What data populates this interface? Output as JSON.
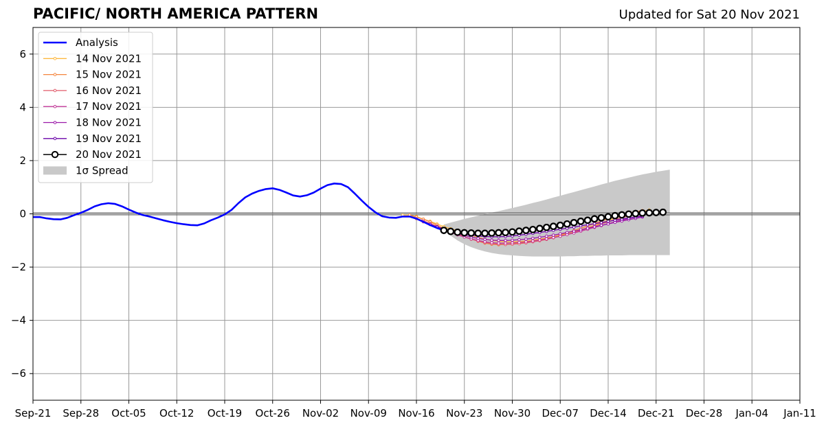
{
  "title": "PACIFIC/ NORTH AMERICA PATTERN",
  "updated": "Updated for Sat 20 Nov 2021",
  "chart_data": {
    "type": "line",
    "title": "PACIFIC/ NORTH AMERICA PATTERN",
    "subtitle": "Updated for Sat 20 Nov 2021",
    "xlabel": "",
    "ylabel": "",
    "x_start": "2021-09-21",
    "xlim": [
      "2021-09-21",
      "2022-01-11"
    ],
    "ylim": [
      -7,
      7
    ],
    "x_ticks": [
      "Sep-21",
      "Sep-28",
      "Oct-05",
      "Oct-12",
      "Oct-19",
      "Oct-26",
      "Nov-02",
      "Nov-09",
      "Nov-16",
      "Nov-23",
      "Nov-30",
      "Dec-07",
      "Dec-14",
      "Dec-21",
      "Dec-28",
      "Jan-04",
      "Jan-11"
    ],
    "y_ticks": [
      -6,
      -4,
      -2,
      0,
      2,
      4,
      6
    ],
    "grid": true,
    "legend_position": "top-left",
    "zero_line": 0,
    "analysis": {
      "name": "Analysis",
      "color": "#0000ff",
      "dates": [
        "2021-09-21",
        "2021-09-22",
        "2021-09-23",
        "2021-09-24",
        "2021-09-25",
        "2021-09-26",
        "2021-09-27",
        "2021-09-28",
        "2021-09-29",
        "2021-09-30",
        "2021-10-01",
        "2021-10-02",
        "2021-10-03",
        "2021-10-04",
        "2021-10-05",
        "2021-10-06",
        "2021-10-07",
        "2021-10-08",
        "2021-10-09",
        "2021-10-10",
        "2021-10-11",
        "2021-10-12",
        "2021-10-13",
        "2021-10-14",
        "2021-10-15",
        "2021-10-16",
        "2021-10-17",
        "2021-10-18",
        "2021-10-19",
        "2021-10-20",
        "2021-10-21",
        "2021-10-22",
        "2021-10-23",
        "2021-10-24",
        "2021-10-25",
        "2021-10-26",
        "2021-10-27",
        "2021-10-28",
        "2021-10-29",
        "2021-10-30",
        "2021-10-31",
        "2021-11-01",
        "2021-11-02",
        "2021-11-03",
        "2021-11-04",
        "2021-11-05",
        "2021-11-06",
        "2021-11-07",
        "2021-11-08",
        "2021-11-09",
        "2021-11-10",
        "2021-11-11",
        "2021-11-12",
        "2021-11-13",
        "2021-11-14",
        "2021-11-15",
        "2021-11-16",
        "2021-11-17",
        "2021-11-18",
        "2021-11-19",
        "2021-11-20"
      ],
      "values": [
        -0.12,
        -0.12,
        -0.17,
        -0.2,
        -0.21,
        -0.15,
        -0.05,
        0.04,
        0.15,
        0.28,
        0.36,
        0.4,
        0.37,
        0.28,
        0.16,
        0.05,
        -0.04,
        -0.1,
        -0.17,
        -0.24,
        -0.3,
        -0.35,
        -0.39,
        -0.42,
        -0.43,
        -0.36,
        -0.24,
        -0.14,
        -0.02,
        0.15,
        0.4,
        0.62,
        0.76,
        0.86,
        0.93,
        0.96,
        0.9,
        0.8,
        0.69,
        0.65,
        0.7,
        0.8,
        0.95,
        1.08,
        1.14,
        1.12,
        1.0,
        0.76,
        0.5,
        0.26,
        0.06,
        -0.09,
        -0.14,
        -0.15,
        -0.1,
        -0.1,
        -0.18,
        -0.3,
        -0.42,
        -0.53,
        -0.62
      ]
    },
    "forecasts": [
      {
        "name": "14 Nov 2021",
        "color": "#fdb83f",
        "start": "2021-11-14",
        "values": [
          -0.05,
          -0.05,
          -0.1,
          -0.2,
          -0.28,
          -0.38,
          -0.48,
          -0.56,
          -0.64,
          -0.72,
          -0.8,
          -0.88,
          -0.95,
          -1.0,
          -1.03,
          -1.05,
          -1.05,
          -1.04,
          -1.02,
          -0.99,
          -0.95,
          -0.91,
          -0.86,
          -0.81,
          -0.75,
          -0.68,
          -0.6,
          -0.52,
          -0.43,
          -0.34,
          -0.25,
          -0.16,
          -0.08,
          -0.01,
          0.05,
          0.09,
          0.14
        ]
      },
      {
        "name": "15 Nov 2021",
        "color": "#f4843c",
        "start": "2021-11-15",
        "values": [
          -0.05,
          -0.12,
          -0.2,
          -0.3,
          -0.42,
          -0.55,
          -0.65,
          -0.76,
          -0.86,
          -0.95,
          -1.03,
          -1.1,
          -1.14,
          -1.16,
          -1.15,
          -1.13,
          -1.1,
          -1.06,
          -1.02,
          -0.97,
          -0.92,
          -0.86,
          -0.79,
          -0.71,
          -0.63,
          -0.54,
          -0.45,
          -0.36,
          -0.27,
          -0.18,
          -0.1,
          -0.03,
          0.03,
          0.08,
          0.12
        ]
      },
      {
        "name": "16 Nov 2021",
        "color": "#e05a6a",
        "start": "2021-11-16",
        "values": [
          -0.18,
          -0.26,
          -0.36,
          -0.47,
          -0.58,
          -0.68,
          -0.78,
          -0.87,
          -0.95,
          -1.02,
          -1.08,
          -1.12,
          -1.14,
          -1.15,
          -1.14,
          -1.12,
          -1.09,
          -1.05,
          -1.01,
          -0.96,
          -0.9,
          -0.84,
          -0.77,
          -0.7,
          -0.62,
          -0.54,
          -0.46,
          -0.38,
          -0.3,
          -0.22,
          -0.15,
          -0.08,
          -0.02,
          0.03
        ]
      },
      {
        "name": "17 Nov 2021",
        "color": "#c23597",
        "start": "2021-11-17",
        "values": [
          -0.3,
          -0.39,
          -0.49,
          -0.6,
          -0.7,
          -0.79,
          -0.87,
          -0.94,
          -1.0,
          -1.05,
          -1.08,
          -1.1,
          -1.1,
          -1.09,
          -1.07,
          -1.05,
          -1.02,
          -0.98,
          -0.94,
          -0.89,
          -0.84,
          -0.78,
          -0.72,
          -0.65,
          -0.58,
          -0.51,
          -0.44,
          -0.37,
          -0.3,
          -0.24,
          -0.18,
          -0.12,
          -0.07
        ]
      },
      {
        "name": "18 Nov 2021",
        "color": "#9a16a8",
        "start": "2021-11-18",
        "values": [
          -0.4,
          -0.48,
          -0.57,
          -0.66,
          -0.74,
          -0.81,
          -0.87,
          -0.92,
          -0.96,
          -0.99,
          -1.0,
          -1.0,
          -0.99,
          -0.97,
          -0.95,
          -0.92,
          -0.88,
          -0.84,
          -0.8,
          -0.75,
          -0.7,
          -0.65,
          -0.6,
          -0.54,
          -0.49,
          -0.43,
          -0.38,
          -0.32,
          -0.27,
          -0.22,
          -0.17,
          -0.12
        ]
      },
      {
        "name": "19 Nov 2021",
        "color": "#6a00a8",
        "start": "2021-11-19",
        "values": [
          -0.5,
          -0.57,
          -0.64,
          -0.7,
          -0.76,
          -0.8,
          -0.83,
          -0.85,
          -0.86,
          -0.86,
          -0.85,
          -0.83,
          -0.8,
          -0.77,
          -0.73,
          -0.7,
          -0.66,
          -0.62,
          -0.58,
          -0.54,
          -0.5,
          -0.45,
          -0.41,
          -0.37,
          -0.33,
          -0.28,
          -0.24,
          -0.2,
          -0.16,
          -0.12,
          -0.09
        ]
      },
      {
        "name": "20 Nov 2021",
        "color": "#000000",
        "start": "2021-11-20",
        "values": [
          -0.62,
          -0.66,
          -0.69,
          -0.71,
          -0.72,
          -0.73,
          -0.73,
          -0.72,
          -0.71,
          -0.7,
          -0.68,
          -0.65,
          -0.62,
          -0.59,
          -0.55,
          -0.51,
          -0.47,
          -0.43,
          -0.38,
          -0.33,
          -0.28,
          -0.24,
          -0.19,
          -0.15,
          -0.11,
          -0.07,
          -0.04,
          -0.01,
          0.01,
          0.03,
          0.04,
          0.05,
          0.06
        ]
      }
    ],
    "spread": {
      "name": "1σ Spread",
      "color": "#c9c9c9",
      "start": "2021-11-20",
      "upper": [
        -0.4,
        -0.33,
        -0.26,
        -0.19,
        -0.13,
        -0.07,
        -0.01,
        0.05,
        0.1,
        0.16,
        0.22,
        0.28,
        0.34,
        0.41,
        0.47,
        0.54,
        0.61,
        0.68,
        0.75,
        0.82,
        0.89,
        0.96,
        1.03,
        1.1,
        1.17,
        1.24,
        1.3,
        1.36,
        1.42,
        1.48,
        1.53,
        1.58,
        1.62,
        1.66
      ],
      "lower": [
        -0.6,
        -0.82,
        -1.0,
        -1.14,
        -1.25,
        -1.34,
        -1.41,
        -1.47,
        -1.51,
        -1.54,
        -1.56,
        -1.58,
        -1.59,
        -1.6,
        -1.6,
        -1.6,
        -1.6,
        -1.6,
        -1.59,
        -1.59,
        -1.58,
        -1.58,
        -1.57,
        -1.57,
        -1.56,
        -1.56,
        -1.56,
        -1.55,
        -1.55,
        -1.55,
        -1.55,
        -1.55,
        -1.55,
        -1.55
      ]
    }
  }
}
